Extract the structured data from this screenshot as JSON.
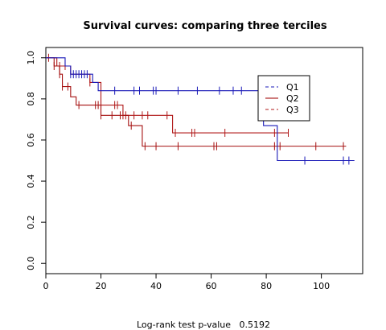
{
  "chart_data": {
    "type": "line",
    "title": "Survival curves: comparing three terciles",
    "xlabel": "",
    "ylabel": "",
    "xlim": [
      0,
      115
    ],
    "ylim": [
      -0.05,
      1.05
    ],
    "x_ticks": [
      0,
      20,
      40,
      60,
      80,
      100
    ],
    "x_tick_labels": [
      "0",
      "20",
      "40",
      "60",
      "80",
      "100"
    ],
    "y_ticks": [
      0.0,
      0.2,
      0.4,
      0.6,
      0.8,
      1.0
    ],
    "y_tick_labels": [
      "0.0",
      "0.2",
      "0.4",
      "0.6",
      "0.8",
      "1.0"
    ],
    "grid": false,
    "legend_position": "top-right",
    "footer": "Log-rank test p-value   0.5192",
    "series": [
      {
        "name": "Q1",
        "color": "#1a1ab8",
        "line_style": "dashed",
        "steps": [
          [
            0,
            1.0
          ],
          [
            7,
            0.96
          ],
          [
            9,
            0.92
          ],
          [
            17,
            0.88
          ],
          [
            19,
            0.84
          ],
          [
            79,
            0.67
          ],
          [
            84,
            0.5
          ],
          [
            112,
            0.5
          ]
        ],
        "censor_times": [
          9,
          10,
          11,
          12,
          13,
          14,
          15,
          25,
          32,
          34,
          39,
          40,
          48,
          55,
          63,
          68,
          71,
          94,
          108,
          110
        ]
      },
      {
        "name": "Q2",
        "color": "#a51010",
        "line_style": "solid",
        "steps": [
          [
            0,
            1.0
          ],
          [
            3,
            0.96
          ],
          [
            5,
            0.92
          ],
          [
            6,
            0.86
          ],
          [
            9,
            0.81
          ],
          [
            11,
            0.77
          ],
          [
            20,
            0.72
          ],
          [
            30,
            0.67
          ],
          [
            35,
            0.57
          ],
          [
            109,
            0.57
          ]
        ],
        "censor_times": [
          3,
          5,
          6,
          8,
          12,
          18,
          19,
          20,
          24,
          27,
          31,
          36,
          40,
          48,
          61,
          62,
          83,
          85,
          98,
          108
        ]
      },
      {
        "name": "Q3",
        "color": "#b01818",
        "line_style": "dashed",
        "steps": [
          [
            0,
            1.0
          ],
          [
            4,
            0.96
          ],
          [
            9,
            0.92
          ],
          [
            16,
            0.88
          ],
          [
            20,
            0.77
          ],
          [
            28,
            0.72
          ],
          [
            46,
            0.635
          ],
          [
            88,
            0.635
          ]
        ],
        "censor_times": [
          1,
          5,
          7,
          16,
          20,
          25,
          26,
          28,
          29,
          32,
          35,
          37,
          44,
          47,
          53,
          54,
          65,
          83,
          88
        ]
      }
    ]
  }
}
